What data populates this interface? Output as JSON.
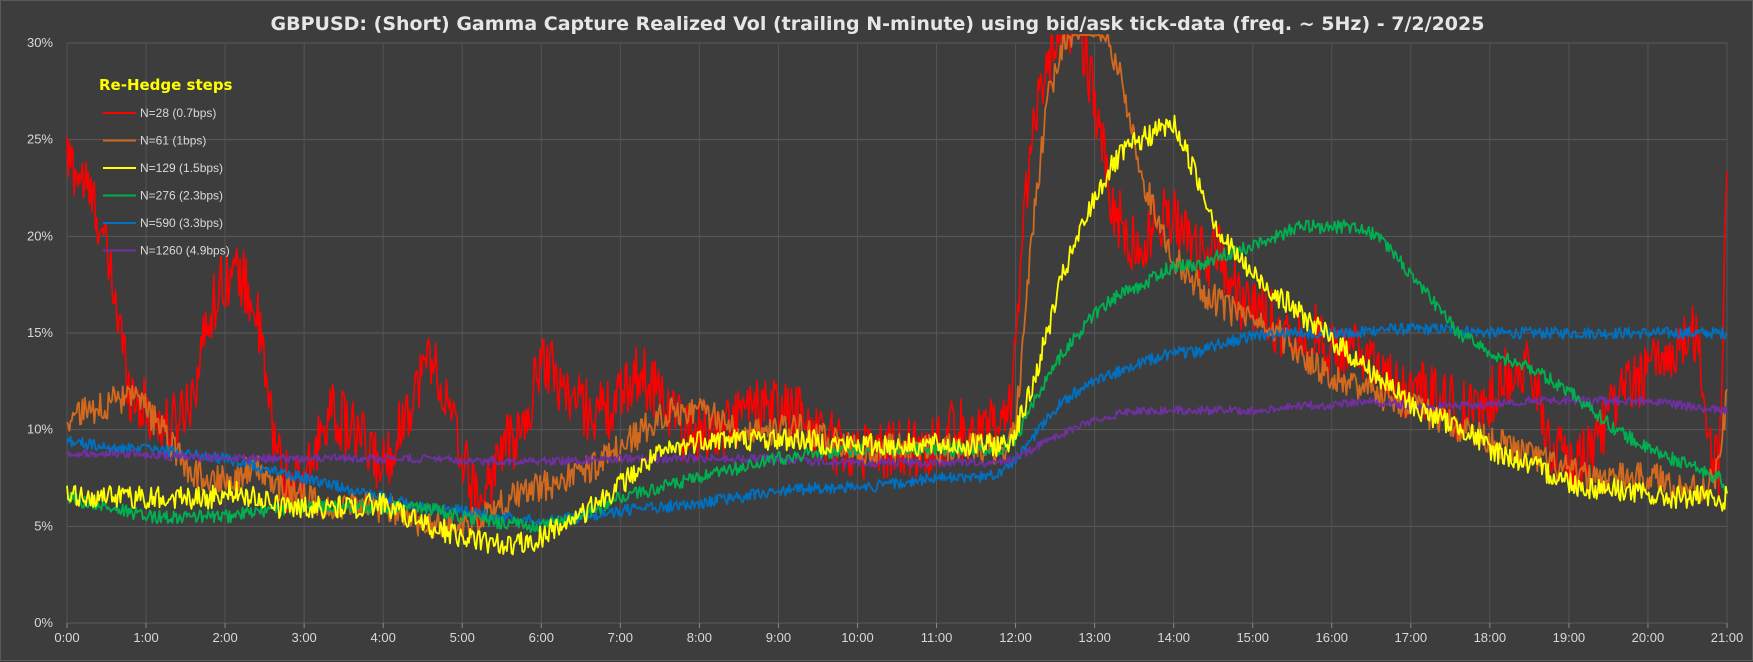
{
  "chart_data": {
    "type": "line",
    "title": "GBPUSD: (Short) Gamma Capture Realized Vol (trailing N-minute) using bid/ask tick-data (freq. ~ 5Hz) - 7/2/2025",
    "xlabel": "",
    "ylabel": "",
    "x_unit": "hour",
    "xlim": [
      0,
      21
    ],
    "ylim": [
      0,
      30
    ],
    "x_ticks": [
      "0:00",
      "1:00",
      "2:00",
      "3:00",
      "4:00",
      "5:00",
      "6:00",
      "7:00",
      "8:00",
      "9:00",
      "10:00",
      "11:00",
      "12:00",
      "13:00",
      "14:00",
      "15:00",
      "16:00",
      "17:00",
      "18:00",
      "19:00",
      "20:00",
      "21:00"
    ],
    "y_ticks": [
      "0%",
      "5%",
      "10%",
      "15%",
      "20%",
      "25%",
      "30%"
    ],
    "grid": true,
    "legend_title": "Re-Hedge steps",
    "legend_position": "top-left",
    "series": [
      {
        "name": "N=28 (0.7bps)",
        "color": "#ff0000",
        "noise": 1.6,
        "x": [
          0,
          0.2,
          0.4,
          0.6,
          0.8,
          1.0,
          1.3,
          1.6,
          1.8,
          2.0,
          2.2,
          2.4,
          2.6,
          2.8,
          3.0,
          3.3,
          3.6,
          4.0,
          4.3,
          4.6,
          4.9,
          5.2,
          5.5,
          5.8,
          6.0,
          6.3,
          6.6,
          6.9,
          7.2,
          7.5,
          7.8,
          8.0,
          8.3,
          8.6,
          8.9,
          9.2,
          9.5,
          9.8,
          10.0,
          10.3,
          10.6,
          10.9,
          11.2,
          11.5,
          11.8,
          11.9,
          12.0,
          12.2,
          12.4,
          12.6,
          12.8,
          13.0,
          13.2,
          13.4,
          13.6,
          13.8,
          14.0,
          14.2,
          14.4,
          14.6,
          14.8,
          15.0,
          15.2,
          15.4,
          15.6,
          15.8,
          16.0,
          16.2,
          16.4,
          16.6,
          16.8,
          17.0,
          17.3,
          17.6,
          17.9,
          18.2,
          18.5,
          18.8,
          19.1,
          19.4,
          19.7,
          20.0,
          20.3,
          20.6,
          20.8,
          20.9,
          21.0
        ],
        "y": [
          24,
          23,
          21,
          17,
          12,
          11,
          10,
          12,
          16,
          18,
          18,
          16,
          10,
          7,
          7,
          11,
          10,
          8,
          11,
          14,
          10,
          6,
          9,
          10,
          14,
          12,
          11,
          11,
          13,
          12,
          10,
          10,
          10,
          11,
          11,
          11,
          10,
          9,
          9,
          9,
          9,
          9,
          10,
          10,
          10,
          10,
          14,
          26,
          29,
          31,
          31,
          27,
          22,
          20,
          19,
          21,
          21,
          20,
          19,
          19,
          17,
          16,
          16,
          15,
          15,
          15,
          14,
          14,
          14,
          13,
          12,
          12,
          12,
          11,
          11,
          13,
          13,
          9,
          8,
          10,
          12,
          13,
          14,
          15,
          9,
          8,
          24
        ]
      },
      {
        "name": "N=61 (1bps)",
        "color": "#d2691e",
        "noise": 0.8,
        "x": [
          0,
          0.3,
          0.6,
          0.9,
          1.2,
          1.5,
          1.8,
          2.1,
          2.4,
          2.7,
          3.0,
          3.3,
          3.6,
          4.0,
          4.3,
          4.6,
          5.0,
          5.3,
          5.6,
          6.0,
          6.3,
          6.6,
          7.0,
          7.3,
          7.6,
          8.0,
          8.3,
          8.6,
          9.0,
          9.3,
          9.6,
          10.0,
          10.3,
          10.6,
          11.0,
          11.3,
          11.6,
          11.8,
          11.9,
          12.0,
          12.2,
          12.4,
          12.6,
          12.8,
          13.0,
          13.2,
          13.4,
          13.6,
          13.8,
          14.0,
          14.2,
          14.4,
          14.6,
          14.8,
          15.0,
          15.3,
          15.6,
          15.9,
          16.2,
          16.5,
          16.8,
          17.1,
          17.4,
          17.7,
          18.0,
          18.3,
          18.6,
          18.9,
          19.2,
          19.5,
          19.8,
          20.1,
          20.4,
          20.7,
          20.9,
          21.0
        ],
        "y": [
          10.5,
          11,
          11.5,
          11.5,
          10,
          8,
          7.5,
          7.5,
          8,
          7,
          6.5,
          6,
          6,
          6,
          5.5,
          5,
          5,
          5.5,
          6.5,
          7,
          7.5,
          8,
          9,
          10,
          11,
          11,
          10.5,
          10,
          10,
          10,
          9.5,
          9,
          9,
          9,
          9,
          9,
          9,
          9,
          9.2,
          10,
          20,
          27,
          30,
          31,
          31,
          30,
          27,
          23,
          21,
          19,
          18,
          17,
          16.5,
          16,
          15.5,
          15,
          14,
          13,
          12.5,
          12,
          11.5,
          11,
          10.5,
          10,
          9.5,
          9,
          8.5,
          8,
          7.5,
          7.5,
          7.5,
          7.5,
          7,
          7,
          8,
          12
        ]
      },
      {
        "name": "N=129 (1.5bps)",
        "color": "#ffff00",
        "noise": 0.6,
        "x": [
          0,
          0.3,
          0.6,
          0.9,
          1.2,
          1.5,
          1.8,
          2.1,
          2.4,
          2.7,
          3.0,
          3.3,
          3.6,
          4.0,
          4.3,
          4.6,
          5.0,
          5.3,
          5.6,
          5.9,
          6.2,
          6.5,
          6.8,
          7.1,
          7.4,
          7.7,
          8.0,
          8.3,
          8.6,
          9.0,
          9.3,
          9.6,
          10.0,
          10.3,
          10.6,
          11.0,
          11.3,
          11.6,
          11.8,
          11.9,
          12.0,
          12.2,
          12.4,
          12.6,
          12.8,
          13.0,
          13.2,
          13.4,
          13.6,
          13.8,
          14.0,
          14.2,
          14.4,
          14.6,
          14.8,
          15.0,
          15.3,
          15.6,
          15.9,
          16.2,
          16.5,
          16.8,
          17.1,
          17.4,
          17.7,
          18.0,
          18.3,
          18.6,
          18.9,
          19.2,
          19.5,
          19.8,
          20.1,
          20.4,
          20.7,
          20.9,
          21.0
        ],
        "y": [
          6.5,
          6.5,
          6.5,
          6.5,
          6.5,
          6.5,
          6.5,
          6.8,
          6.5,
          6,
          6,
          6,
          6,
          6.2,
          5.5,
          5,
          4.5,
          4.2,
          4,
          4.2,
          5,
          5.5,
          6.5,
          7.5,
          8.5,
          9,
          9.5,
          9.5,
          9.5,
          9.5,
          9.5,
          9.3,
          9.2,
          9.2,
          9.2,
          9.2,
          9.2,
          9.2,
          9.2,
          9.3,
          10,
          12,
          15,
          18,
          20,
          22,
          23.5,
          24.5,
          25,
          25.5,
          25.8,
          24,
          22,
          20,
          19,
          18,
          17,
          16,
          15,
          14,
          13,
          12,
          11,
          10.5,
          10,
          9,
          8.5,
          8,
          7.5,
          7,
          7,
          6.8,
          6.5,
          6.5,
          6.5,
          6.2,
          6.5
        ]
      },
      {
        "name": "N=276 (2.3bps)",
        "color": "#00b050",
        "noise": 0.35,
        "x": [
          0,
          0.5,
          1.0,
          1.5,
          2.0,
          2.5,
          3.0,
          3.5,
          4.0,
          4.5,
          5.0,
          5.5,
          6.0,
          6.5,
          7.0,
          7.5,
          8.0,
          8.5,
          9.0,
          9.5,
          10.0,
          10.5,
          11.0,
          11.5,
          11.8,
          12.0,
          12.3,
          12.6,
          13.0,
          13.3,
          13.6,
          14.0,
          14.3,
          14.6,
          15.0,
          15.3,
          15.6,
          16.0,
          16.3,
          16.6,
          17.0,
          17.3,
          17.6,
          18.0,
          18.3,
          18.6,
          19.0,
          19.3,
          19.6,
          20.0,
          20.3,
          20.6,
          20.9,
          21.0
        ],
        "y": [
          6.5,
          6,
          5.5,
          5.5,
          5.5,
          5.8,
          6,
          6,
          6,
          6,
          5.5,
          5.2,
          5,
          5.5,
          6.5,
          7,
          7.5,
          8,
          8.5,
          8.8,
          9,
          9,
          9,
          9,
          9,
          9.5,
          12,
          14,
          16,
          17,
          17.5,
          18.5,
          18.5,
          19,
          19.5,
          20,
          20.5,
          20.5,
          20.5,
          20,
          18,
          16.5,
          15,
          14,
          13.5,
          13,
          12,
          11,
          10,
          9,
          8.5,
          8,
          7.5,
          7
        ]
      },
      {
        "name": "N=590 (3.3bps)",
        "color": "#0070c0",
        "noise": 0.3,
        "x": [
          0,
          0.5,
          1.0,
          1.5,
          2.0,
          2.5,
          3.0,
          3.5,
          4.0,
          4.5,
          5.0,
          5.5,
          6.0,
          6.5,
          7.0,
          7.5,
          8.0,
          8.5,
          9.0,
          9.5,
          10.0,
          10.5,
          11.0,
          11.5,
          11.8,
          12.0,
          12.3,
          12.6,
          13.0,
          13.3,
          13.6,
          14.0,
          14.3,
          14.6,
          15.0,
          15.3,
          15.6,
          16.0,
          16.3,
          16.6,
          17.0,
          17.5,
          18.0,
          18.5,
          19.0,
          19.5,
          20.0,
          20.5,
          21.0
        ],
        "y": [
          9.5,
          9,
          9,
          8.8,
          8.5,
          8,
          7.5,
          7,
          6.5,
          6,
          5.8,
          5.5,
          5.2,
          5.5,
          5.8,
          6,
          6.2,
          6.5,
          6.8,
          7,
          7,
          7.2,
          7.5,
          7.5,
          7.8,
          8.5,
          10,
          11.5,
          12.5,
          13,
          13.5,
          14,
          14,
          14.5,
          14.8,
          15,
          15,
          15,
          15,
          15.2,
          15.2,
          15.2,
          15,
          15,
          15,
          15,
          15,
          15,
          15
        ]
      },
      {
        "name": "N=1260 (4.9bps)",
        "color": "#7030a0",
        "noise": 0.22,
        "x": [
          0,
          0.5,
          1.0,
          1.5,
          2.0,
          2.5,
          3.0,
          3.5,
          4.0,
          4.5,
          5.0,
          5.5,
          6.0,
          6.5,
          7.0,
          7.5,
          8.0,
          8.5,
          9.0,
          9.5,
          10.0,
          10.5,
          11.0,
          11.5,
          11.8,
          12.0,
          12.3,
          12.6,
          13.0,
          13.3,
          13.6,
          14.0,
          14.5,
          15.0,
          15.5,
          16.0,
          16.5,
          17.0,
          17.5,
          18.0,
          18.5,
          19.0,
          19.5,
          20.0,
          20.5,
          21.0
        ],
        "y": [
          8.8,
          8.8,
          8.7,
          8.6,
          8.5,
          8.5,
          8.5,
          8.5,
          8.5,
          8.5,
          8.4,
          8.4,
          8.4,
          8.4,
          8.5,
          8.5,
          8.5,
          8.5,
          8.5,
          8.3,
          8.3,
          8.3,
          8.3,
          8.3,
          8.3,
          8.5,
          9.2,
          9.8,
          10.5,
          10.8,
          11,
          11,
          11,
          11,
          11.2,
          11.3,
          11.5,
          11.2,
          11.2,
          11.3,
          11.5,
          11.5,
          11.5,
          11.5,
          11.2,
          11
        ]
      }
    ]
  }
}
